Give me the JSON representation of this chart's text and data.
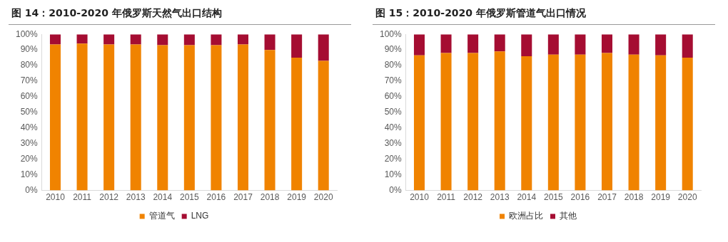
{
  "chart_data": [
    {
      "type": "bar",
      "title": "图 14：2010-2020 年俄罗斯天然气出口结构",
      "stacked": true,
      "legend": "bottom",
      "grid": false,
      "categories": [
        "2010",
        "2011",
        "2012",
        "2013",
        "2014",
        "2015",
        "2016",
        "2017",
        "2018",
        "2019",
        "2020"
      ],
      "ylim": [
        0,
        100
      ],
      "yticks": [
        {
          "value": 0,
          "label": "0%"
        },
        {
          "value": 10,
          "label": "10%"
        },
        {
          "value": 20,
          "label": "20%"
        },
        {
          "value": 30,
          "label": "30%"
        },
        {
          "value": 40,
          "label": "40%"
        },
        {
          "value": 50,
          "label": "50%"
        },
        {
          "value": 60,
          "label": "60%"
        },
        {
          "value": 70,
          "label": "70%"
        },
        {
          "value": 80,
          "label": "80%"
        },
        {
          "value": 90,
          "label": "90%"
        },
        {
          "value": 100,
          "label": "100%"
        }
      ],
      "series": [
        {
          "name": "管道气",
          "color": "#f08300",
          "values": [
            93.5,
            94,
            93.5,
            93.5,
            93,
            93,
            93,
            93.5,
            90,
            85,
            83
          ]
        },
        {
          "name": "LNG",
          "color": "#a50d32",
          "values": [
            6.5,
            6,
            6.5,
            6.5,
            7,
            7,
            7,
            6.5,
            10,
            15,
            17
          ]
        }
      ]
    },
    {
      "type": "bar",
      "title": "图 15：2010-2020 年俄罗斯管道气出口情况",
      "stacked": true,
      "legend": "bottom",
      "grid": false,
      "categories": [
        "2010",
        "2011",
        "2012",
        "2013",
        "2014",
        "2015",
        "2016",
        "2017",
        "2018",
        "2019",
        "2020"
      ],
      "ylim": [
        0,
        100
      ],
      "yticks": [
        {
          "value": 0,
          "label": "0%"
        },
        {
          "value": 10,
          "label": "10%"
        },
        {
          "value": 20,
          "label": "20%"
        },
        {
          "value": 30,
          "label": "30%"
        },
        {
          "value": 40,
          "label": "40%"
        },
        {
          "value": 50,
          "label": "50%"
        },
        {
          "value": 60,
          "label": "60%"
        },
        {
          "value": 70,
          "label": "70%"
        },
        {
          "value": 80,
          "label": "80%"
        },
        {
          "value": 90,
          "label": "90%"
        },
        {
          "value": 100,
          "label": "100%"
        }
      ],
      "series": [
        {
          "name": "欧洲占比",
          "color": "#f08300",
          "values": [
            86.5,
            88,
            88,
            89,
            86,
            87,
            87,
            88,
            87,
            86.5,
            85
          ]
        },
        {
          "name": "其他",
          "color": "#a50d32",
          "values": [
            13.5,
            12,
            12,
            11,
            14,
            13,
            13,
            12,
            13,
            13.5,
            15
          ]
        }
      ]
    }
  ]
}
